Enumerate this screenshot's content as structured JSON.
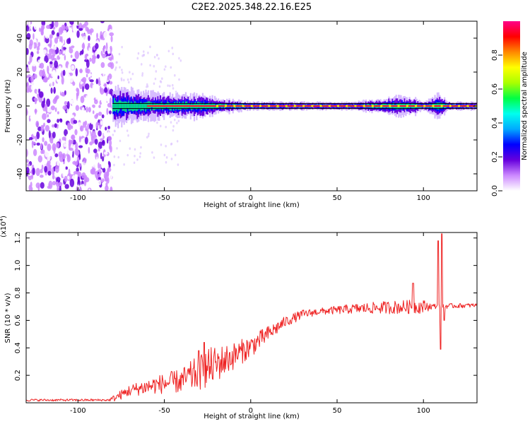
{
  "figure": {
    "title": "C2E2.2025.348.22.16.E25"
  },
  "chart_data": [
    {
      "type": "heatmap",
      "xlabel": "Height of straight line (km)",
      "ylabel": "Frequency (Hz)",
      "xlim": [
        -130,
        131
      ],
      "ylim": [
        -50,
        50
      ],
      "x_ticks": [
        -100,
        -50,
        0,
        50,
        100
      ],
      "y_ticks": [
        -40,
        -20,
        0,
        20,
        40
      ],
      "noise_region_x": [
        -130,
        -80
      ],
      "signal_band_x": [
        -80,
        131
      ],
      "guide_lines_hz": [
        1.5,
        -1.5
      ],
      "centerline_hz": 0,
      "spread_profile": [
        {
          "x": -80,
          "spread_hz": 5
        },
        {
          "x": -70,
          "spread_hz": 4
        },
        {
          "x": -50,
          "spread_hz": 3
        },
        {
          "x": -30,
          "spread_hz": 3
        },
        {
          "x": -20,
          "spread_hz": 2
        },
        {
          "x": 0,
          "spread_hz": 1
        },
        {
          "x": 60,
          "spread_hz": 1
        },
        {
          "x": 85,
          "spread_hz": 2.5
        },
        {
          "x": 95,
          "spread_hz": 2
        },
        {
          "x": 100,
          "spread_hz": 1
        },
        {
          "x": 108,
          "spread_hz": 3
        },
        {
          "x": 115,
          "spread_hz": 1
        },
        {
          "x": 131,
          "spread_hz": 1
        }
      ],
      "grid": false,
      "colorbar": {
        "label": "Normalized spectral amplitude",
        "range": [
          0.0,
          1.0
        ],
        "ticks": [
          "0.0",
          "0.2",
          "0.4",
          "0.6",
          "0.8"
        ],
        "tick_values": [
          0.0,
          0.2,
          0.4,
          0.6,
          0.8
        ],
        "colors": [
          "#ffffff",
          "#cc88ff",
          "#6600dd",
          "#0000ff",
          "#00aaff",
          "#00ffee",
          "#00ff44",
          "#aaff00",
          "#ffff00",
          "#ff8800",
          "#ff0000",
          "#ff0088"
        ]
      }
    },
    {
      "type": "line",
      "xlabel": "Height of straight line (km)",
      "ylabel": "SNR (10 * v/v)",
      "multiplier": "(x10",
      "multiplier_exp": "4",
      "multiplier_close": ")",
      "xlim": [
        -130,
        131
      ],
      "ylim": [
        0,
        1.24
      ],
      "x_ticks": [
        -100,
        -50,
        0,
        50,
        100
      ],
      "y_ticks": [
        "0.2",
        "0.4",
        "0.6",
        "0.8",
        "1.0",
        "1.2"
      ],
      "y_tick_values": [
        0.2,
        0.4,
        0.6,
        0.8,
        1.0,
        1.2
      ],
      "color": "#ee2222",
      "grid": false,
      "trend": [
        {
          "x": -130,
          "y": 0.02
        },
        {
          "x": -82,
          "y": 0.02
        },
        {
          "x": -78,
          "y": 0.04
        },
        {
          "x": -70,
          "y": 0.09
        },
        {
          "x": -55,
          "y": 0.13
        },
        {
          "x": -40,
          "y": 0.16
        },
        {
          "x": -30,
          "y": 0.22
        },
        {
          "x": -20,
          "y": 0.28
        },
        {
          "x": -10,
          "y": 0.34
        },
        {
          "x": 0,
          "y": 0.41
        },
        {
          "x": 10,
          "y": 0.5
        },
        {
          "x": 20,
          "y": 0.59
        },
        {
          "x": 30,
          "y": 0.645
        },
        {
          "x": 40,
          "y": 0.665
        },
        {
          "x": 60,
          "y": 0.685
        },
        {
          "x": 80,
          "y": 0.695
        },
        {
          "x": 131,
          "y": 0.71
        }
      ],
      "noise_amplitude": [
        {
          "x": -130,
          "a": 0.008
        },
        {
          "x": -82,
          "a": 0.008
        },
        {
          "x": -78,
          "a": 0.03
        },
        {
          "x": -40,
          "a": 0.09
        },
        {
          "x": -25,
          "a": 0.15
        },
        {
          "x": -10,
          "a": 0.1
        },
        {
          "x": 20,
          "a": 0.04
        },
        {
          "x": 40,
          "a": 0.025
        },
        {
          "x": 85,
          "a": 0.05
        },
        {
          "x": 100,
          "a": 0.05
        },
        {
          "x": 105,
          "a": 0.02
        },
        {
          "x": 131,
          "a": 0.015
        }
      ],
      "features": [
        {
          "x": -27,
          "y": 0.44
        },
        {
          "x": -30,
          "y": 0.38
        },
        {
          "x": 94,
          "y": 0.87
        },
        {
          "x": 108.5,
          "y": 1.18
        },
        {
          "x": 110.5,
          "y": 1.23
        },
        {
          "x": 110,
          "y": 0.39
        },
        {
          "x": 112,
          "y": 0.6
        }
      ]
    }
  ]
}
